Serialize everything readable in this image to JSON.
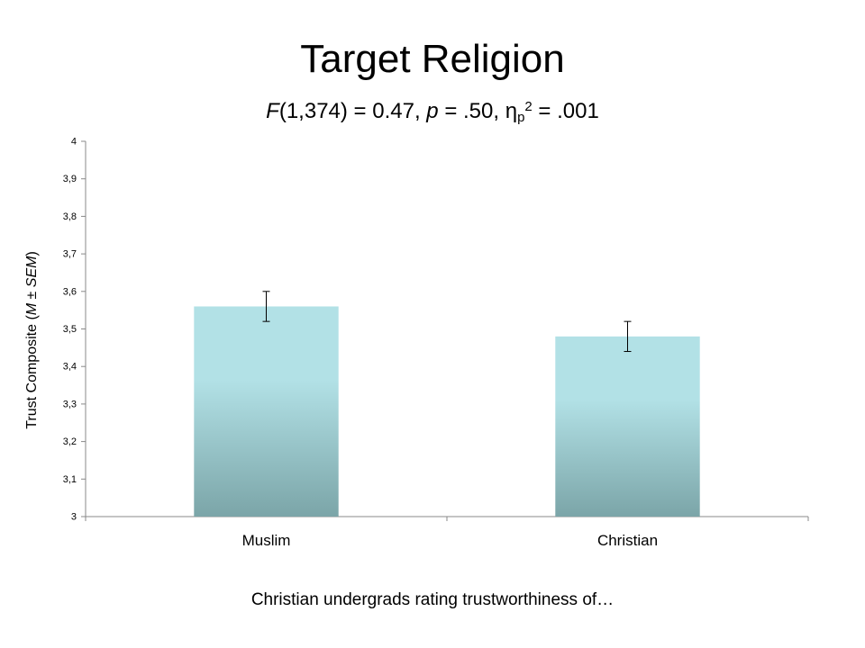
{
  "title": "Target Religion",
  "stats": {
    "F_label": "F",
    "F_value": "(1,374) = 0.47, ",
    "p_label": "p",
    "p_value": " = .50, η",
    "eta_sub": "p",
    "eta_sup": "2",
    "eta_value": " = .001"
  },
  "ylabel": {
    "prefix": "Trust Composite (",
    "m": "M",
    "mid": " ± ",
    "sem": "SEM",
    "suffix": ")"
  },
  "xcaption": "Christian undergrads rating trustworthiness of…",
  "colors": {
    "bar_top": "#b2e1e6",
    "bar_bottom": "#7ba5a8",
    "axis": "#888888"
  },
  "chart_data": {
    "type": "bar",
    "categories": [
      "Muslim",
      "Christian"
    ],
    "values": [
      3.56,
      3.48
    ],
    "error": [
      0.04,
      0.04
    ],
    "ylim": [
      3,
      4
    ],
    "yticks": [
      "3",
      "3,1",
      "3,2",
      "3,3",
      "3,4",
      "3,5",
      "3,6",
      "3,7",
      "3,8",
      "3,9",
      "4"
    ],
    "grid": false,
    "legend": "none"
  }
}
